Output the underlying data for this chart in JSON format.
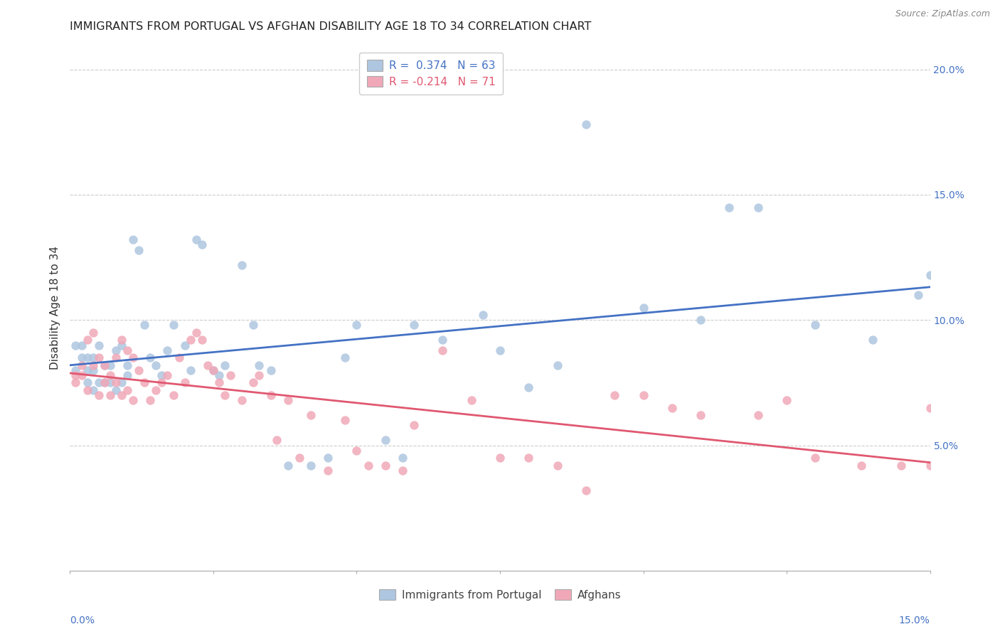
{
  "title": "IMMIGRANTS FROM PORTUGAL VS AFGHAN DISABILITY AGE 18 TO 34 CORRELATION CHART",
  "source": "Source: ZipAtlas.com",
  "ylabel": "Disability Age 18 to 34",
  "xlim": [
    0.0,
    0.15
  ],
  "ylim": [
    0.0,
    0.21
  ],
  "blue_R": 0.374,
  "blue_N": 63,
  "pink_R": -0.214,
  "pink_N": 71,
  "blue_color": "#aec6e0",
  "pink_color": "#f0a8b8",
  "blue_line_color": "#4472C4",
  "pink_line_color": "#E05870",
  "legend_blue_label": "Immigrants from Portugal",
  "legend_pink_label": "Afghans",
  "background_color": "#ffffff",
  "grid_color": "#cccccc",
  "blue_x": [
    0.001,
    0.001,
    0.002,
    0.002,
    0.003,
    0.003,
    0.003,
    0.004,
    0.004,
    0.004,
    0.005,
    0.005,
    0.006,
    0.006,
    0.007,
    0.007,
    0.008,
    0.008,
    0.009,
    0.009,
    0.01,
    0.01,
    0.011,
    0.012,
    0.013,
    0.014,
    0.015,
    0.016,
    0.017,
    0.018,
    0.02,
    0.021,
    0.022,
    0.023,
    0.025,
    0.026,
    0.027,
    0.03,
    0.032,
    0.033,
    0.035,
    0.038,
    0.042,
    0.045,
    0.048,
    0.05,
    0.055,
    0.058,
    0.06,
    0.065,
    0.072,
    0.075,
    0.08,
    0.085,
    0.09,
    0.1,
    0.11,
    0.115,
    0.12,
    0.13,
    0.14,
    0.148,
    0.15
  ],
  "blue_y": [
    0.08,
    0.09,
    0.085,
    0.09,
    0.075,
    0.08,
    0.085,
    0.072,
    0.08,
    0.085,
    0.075,
    0.09,
    0.075,
    0.082,
    0.075,
    0.082,
    0.072,
    0.088,
    0.075,
    0.09,
    0.078,
    0.082,
    0.132,
    0.128,
    0.098,
    0.085,
    0.082,
    0.078,
    0.088,
    0.098,
    0.09,
    0.08,
    0.132,
    0.13,
    0.08,
    0.078,
    0.082,
    0.122,
    0.098,
    0.082,
    0.08,
    0.042,
    0.042,
    0.045,
    0.085,
    0.098,
    0.052,
    0.045,
    0.098,
    0.092,
    0.102,
    0.088,
    0.073,
    0.082,
    0.178,
    0.105,
    0.1,
    0.145,
    0.145,
    0.098,
    0.092,
    0.11,
    0.118
  ],
  "pink_x": [
    0.001,
    0.001,
    0.002,
    0.002,
    0.003,
    0.003,
    0.004,
    0.004,
    0.005,
    0.005,
    0.006,
    0.006,
    0.007,
    0.007,
    0.008,
    0.008,
    0.009,
    0.009,
    0.01,
    0.01,
    0.011,
    0.011,
    0.012,
    0.013,
    0.014,
    0.015,
    0.016,
    0.017,
    0.018,
    0.019,
    0.02,
    0.021,
    0.022,
    0.023,
    0.024,
    0.025,
    0.026,
    0.027,
    0.028,
    0.03,
    0.032,
    0.033,
    0.035,
    0.036,
    0.038,
    0.04,
    0.042,
    0.045,
    0.048,
    0.05,
    0.052,
    0.055,
    0.058,
    0.06,
    0.065,
    0.07,
    0.075,
    0.08,
    0.085,
    0.09,
    0.095,
    0.1,
    0.105,
    0.11,
    0.12,
    0.125,
    0.13,
    0.138,
    0.145,
    0.15,
    0.15
  ],
  "pink_y": [
    0.075,
    0.078,
    0.078,
    0.082,
    0.072,
    0.092,
    0.082,
    0.095,
    0.07,
    0.085,
    0.075,
    0.082,
    0.07,
    0.078,
    0.075,
    0.085,
    0.07,
    0.092,
    0.072,
    0.088,
    0.068,
    0.085,
    0.08,
    0.075,
    0.068,
    0.072,
    0.075,
    0.078,
    0.07,
    0.085,
    0.075,
    0.092,
    0.095,
    0.092,
    0.082,
    0.08,
    0.075,
    0.07,
    0.078,
    0.068,
    0.075,
    0.078,
    0.07,
    0.052,
    0.068,
    0.045,
    0.062,
    0.04,
    0.06,
    0.048,
    0.042,
    0.042,
    0.04,
    0.058,
    0.088,
    0.068,
    0.045,
    0.045,
    0.042,
    0.032,
    0.07,
    0.07,
    0.065,
    0.062,
    0.062,
    0.068,
    0.045,
    0.042,
    0.042,
    0.042,
    0.065
  ],
  "title_fontsize": 11.5,
  "axis_label_fontsize": 11,
  "tick_fontsize": 10,
  "legend_fontsize": 11,
  "marker_size": 80,
  "line_width": 2.0
}
